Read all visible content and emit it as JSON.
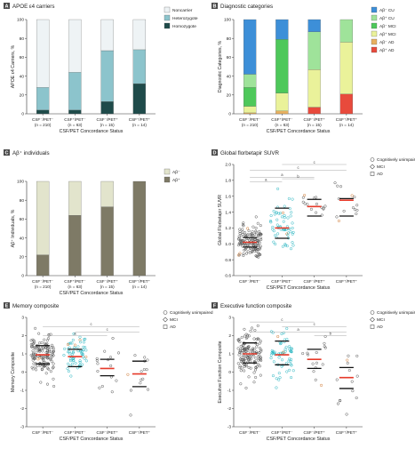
{
  "colors": {
    "noncarrier": "#eef3f5",
    "heterozygote": "#8cc4cc",
    "homozygote": "#1f4b4a",
    "abneg_cu": "#3d8fd8",
    "abpos_cu": "#9fe39a",
    "abneg_mci": "#4ec85a",
    "abpos_mci": "#eaf29a",
    "abneg_ad": "#e8b060",
    "abpos_ad": "#e84a3c",
    "abneg_ind": "#e2e4cc",
    "abpos_ind": "#7e7a66",
    "dot_cu": "#2aa8b4",
    "dot_ad": "#d07830",
    "dot_grey": "#555555",
    "dot_cyan": "#27b5c1",
    "median": "#e63a2a",
    "bracket": "#aaaaaa",
    "axis": "#333333",
    "panel_bg": "#ffffff"
  },
  "x_axis_title": "CSF/PET Concordance Status",
  "categories": [
    {
      "line1": "CSF⁻/PET⁻",
      "line2": "(n = 210)",
      "short": "CSF⁻/PET⁻"
    },
    {
      "line1": "CSF⁺/PET⁻",
      "line2": "(n = 63)",
      "short": "CSF⁺/PET⁻"
    },
    {
      "line1": "CSF⁻/PET⁺",
      "line2": "(n = 15)",
      "short": "CSF⁻/PET⁺"
    },
    {
      "line1": "CSF⁺/PET⁺",
      "line2": "(n = 14)",
      "short": "CSF⁺/PET⁺"
    }
  ],
  "panels": {
    "A": {
      "letter": "A",
      "title": "APOE ε4 carriers",
      "ylabel": "APOE ε4 Carriers, %"
    },
    "B": {
      "letter": "B",
      "title": "Diagnostic categories",
      "ylabel": "Diagnostic Categories, %"
    },
    "C": {
      "letter": "C",
      "title": "Aβ⁺ individuals",
      "ylabel": "Aβ⁺ Individuals, %"
    },
    "D": {
      "letter": "D",
      "title": "Global florbetapir SUVR",
      "ylabel": "Global Florbetapir SUVR"
    },
    "E": {
      "letter": "E",
      "title": "Memory composite",
      "ylabel": "Memory Composite"
    },
    "F": {
      "letter": "F",
      "title": "Executive function composite",
      "ylabel": "Executive Function Composite"
    }
  },
  "legends": {
    "A": [
      "Noncarrier",
      "Heterozygote",
      "Homozygote"
    ],
    "B": [
      "Aβ⁻ CU",
      "Aβ⁺ CU",
      "Aβ⁻ MCI",
      "Aβ⁺ MCI",
      "Aβ⁻ AD",
      "Aβ⁺ AD"
    ],
    "C": [
      "Aβ⁻",
      "Aβ⁺"
    ],
    "scatter": [
      "Cognitively unimpaired",
      "MCI",
      "AD"
    ]
  },
  "chart_data": [
    {
      "panel": "A",
      "type": "bar",
      "stacked": true,
      "title": "APOE ε4 carriers",
      "ylabel": "APOE ε4 Carriers, %",
      "xlabel": "CSF/PET Concordance Status",
      "categories": [
        "CSF⁻/PET⁻ (n = 210)",
        "CSF⁺/PET⁻ (n = 63)",
        "CSF⁻/PET⁺ (n = 15)",
        "CSF⁺/PET⁺ (n = 14)"
      ],
      "ylim": [
        0,
        100
      ],
      "yticks": [
        0,
        20,
        40,
        60,
        80,
        100
      ],
      "series": [
        {
          "name": "Homozygote",
          "values": [
            4,
            4,
            13,
            32
          ]
        },
        {
          "name": "Heterozygote",
          "values": [
            24,
            40,
            54,
            36
          ]
        },
        {
          "name": "Noncarrier",
          "values": [
            72,
            56,
            33,
            32
          ]
        }
      ]
    },
    {
      "panel": "B",
      "type": "bar",
      "stacked": true,
      "title": "Diagnostic categories",
      "ylabel": "Diagnostic Categories, %",
      "xlabel": "CSF/PET Concordance Status",
      "categories": [
        "CSF⁻/PET⁻ (n = 210)",
        "CSF⁺/PET⁻ (n = 63)",
        "CSF⁻/PET⁺ (n = 15)",
        "CSF⁺/PET⁺ (n = 14)"
      ],
      "ylim": [
        0,
        100
      ],
      "yticks": [
        0,
        20,
        40,
        60,
        80,
        100
      ],
      "series": [
        {
          "name": "Aβ⁺ AD",
          "values": [
            0,
            0,
            7,
            21
          ]
        },
        {
          "name": "Aβ⁻ AD",
          "values": [
            1,
            3,
            0,
            0
          ]
        },
        {
          "name": "Aβ⁺ MCI",
          "values": [
            7,
            19,
            40,
            55
          ]
        },
        {
          "name": "Aβ⁻ MCI",
          "values": [
            20,
            57,
            0,
            0
          ]
        },
        {
          "name": "Aβ⁺ CU",
          "values": [
            14,
            0,
            40,
            24
          ]
        },
        {
          "name": "Aβ⁻ CU",
          "values": [
            58,
            21,
            13,
            0
          ]
        }
      ]
    },
    {
      "panel": "C",
      "type": "bar",
      "stacked": true,
      "title": "Aβ⁺ individuals",
      "ylabel": "Aβ⁺ Individuals, %",
      "xlabel": "CSF/PET Concordance Status",
      "categories": [
        "CSF⁻/PET⁻ (n = 210)",
        "CSF⁺/PET⁻ (n = 63)",
        "CSF⁻/PET⁺ (n = 15)",
        "CSF⁺/PET⁺ (n = 14)"
      ],
      "ylim": [
        0,
        100
      ],
      "yticks": [
        0,
        20,
        40,
        60,
        80,
        100
      ],
      "series": [
        {
          "name": "Aβ⁺",
          "values": [
            22,
            64,
            73,
            100
          ]
        },
        {
          "name": "Aβ⁻",
          "values": [
            78,
            36,
            27,
            0
          ]
        }
      ]
    },
    {
      "panel": "D",
      "type": "scatter",
      "title": "Global florbetapir SUVR",
      "ylabel": "Global Florbetapir SUVR",
      "xlabel": "CSF/PET Concordance Status",
      "categories": [
        "CSF⁻/PET⁻",
        "CSF⁺/PET⁻",
        "CSF⁻/PET⁺",
        "CSF⁺/PET⁺"
      ],
      "ylim": [
        0.6,
        2.0
      ],
      "yticks": [
        0.6,
        0.8,
        1.0,
        1.2,
        1.4,
        1.6,
        1.8,
        2.0
      ],
      "groups": [
        {
          "n": 210,
          "center": 1.03,
          "spread": 0.1,
          "min": 0.83,
          "max": 1.58,
          "median": 1.02,
          "q1": 0.96,
          "q3": 1.08,
          "ad_frac": 0.02
        },
        {
          "n": 63,
          "center": 1.2,
          "spread": 0.17,
          "min": 0.93,
          "max": 1.72,
          "median": 1.2,
          "q1": 1.07,
          "q3": 1.45,
          "ad_frac": 0.05
        },
        {
          "n": 15,
          "center": 1.46,
          "spread": 0.1,
          "min": 0.98,
          "max": 1.72,
          "median": 1.47,
          "q1": 1.35,
          "q3": 1.56,
          "ad_frac": 0.07
        },
        {
          "n": 14,
          "center": 1.53,
          "spread": 0.15,
          "min": 1.25,
          "max": 1.88,
          "median": 1.55,
          "q1": 1.35,
          "q3": 1.57,
          "ad_frac": 0.2
        }
      ],
      "comparisons": [
        {
          "from": 0,
          "to": 1,
          "y": 1.78,
          "label": "a"
        },
        {
          "from": 0,
          "to": 2,
          "y": 1.84,
          "label": "a"
        },
        {
          "from": 1,
          "to": 2,
          "y": 1.82,
          "label": "b"
        },
        {
          "from": 0,
          "to": 3,
          "y": 1.93,
          "label": "c"
        },
        {
          "from": 1,
          "to": 3,
          "y": 2.0,
          "label": "c"
        }
      ],
      "legend": [
        "Cognitively unimpaired",
        "MCI",
        "AD"
      ]
    },
    {
      "panel": "E",
      "type": "scatter",
      "title": "Memory composite",
      "ylabel": "Memory Composite",
      "xlabel": "CSF/PET Concordance Status",
      "categories": [
        "CSF⁻/PET⁻",
        "CSF⁺/PET⁻",
        "CSF⁻/PET⁺",
        "CSF⁺/PET⁺"
      ],
      "ylim": [
        -3,
        3
      ],
      "yticks": [
        -3,
        -2,
        -1,
        0,
        1,
        2,
        3
      ],
      "groups": [
        {
          "n": 210,
          "center": 0.95,
          "spread": 0.6,
          "min": -0.8,
          "max": 2.6,
          "median": 0.95,
          "q1": 0.45,
          "q3": 1.45,
          "ad_frac": 0.02
        },
        {
          "n": 63,
          "center": 0.85,
          "spread": 0.6,
          "min": -1.1,
          "max": 2.4,
          "median": 0.85,
          "q1": 0.3,
          "q3": 1.25,
          "ad_frac": 0.04
        },
        {
          "n": 15,
          "center": 0.2,
          "spread": 0.8,
          "min": -1.6,
          "max": 2.2,
          "median": 0.2,
          "q1": -0.2,
          "q3": 0.7,
          "ad_frac": 0.07
        },
        {
          "n": 14,
          "center": -0.1,
          "spread": 0.9,
          "min": -2.4,
          "max": 1.8,
          "median": -0.1,
          "q1": -0.8,
          "q3": 0.6,
          "ad_frac": 0.2
        }
      ],
      "comparisons": [
        {
          "from": 0,
          "to": 2,
          "y": 2.0,
          "label": "a"
        },
        {
          "from": 1,
          "to": 3,
          "y": 2.2,
          "label": "c"
        },
        {
          "from": 0,
          "to": 3,
          "y": 2.5,
          "label": "c"
        }
      ],
      "legend": [
        "Cognitively unimpaired",
        "MCI",
        "AD"
      ]
    },
    {
      "panel": "F",
      "type": "scatter",
      "title": "Executive function composite",
      "ylabel": "Executive Function Composite",
      "xlabel": "CSF/PET Concordance Status",
      "categories": [
        "CSF⁻/PET⁻",
        "CSF⁺/PET⁻",
        "CSF⁻/PET⁺",
        "CSF⁺/PET⁺"
      ],
      "ylim": [
        -3,
        3
      ],
      "yticks": [
        -3,
        -2,
        -1,
        0,
        1,
        2,
        3
      ],
      "groups": [
        {
          "n": 210,
          "center": 1.0,
          "spread": 0.65,
          "min": -0.9,
          "max": 2.7,
          "median": 1.0,
          "q1": 0.5,
          "q3": 1.6,
          "ad_frac": 0.02
        },
        {
          "n": 63,
          "center": 0.95,
          "spread": 0.7,
          "min": -0.9,
          "max": 2.4,
          "median": 0.95,
          "q1": 0.4,
          "q3": 1.7,
          "ad_frac": 0.04
        },
        {
          "n": 15,
          "center": 0.7,
          "spread": 0.8,
          "min": -2.1,
          "max": 2.0,
          "median": 0.7,
          "q1": 0.2,
          "q3": 1.25,
          "ad_frac": 0.07
        },
        {
          "n": 14,
          "center": -0.3,
          "spread": 1.0,
          "min": -2.7,
          "max": 2.2,
          "median": -0.3,
          "q1": -0.9,
          "q3": 0.25,
          "ad_frac": 0.2
        }
      ],
      "comparisons": [
        {
          "from": 2,
          "to": 3,
          "y": 2.0,
          "label": "b"
        },
        {
          "from": 0,
          "to": 3,
          "y": 2.2,
          "label": "a"
        },
        {
          "from": 1,
          "to": 3,
          "y": 2.5,
          "label": "c"
        },
        {
          "from": 0,
          "to": 2,
          "y": 2.75,
          "label": "c"
        }
      ],
      "legend": [
        "Cognitively unimpaired",
        "MCI",
        "AD"
      ]
    }
  ]
}
